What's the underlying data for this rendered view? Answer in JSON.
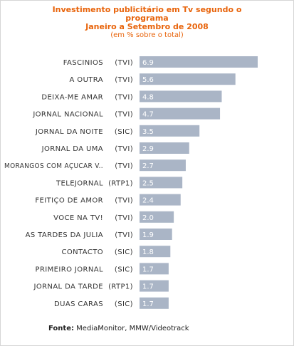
{
  "header": {
    "title_line1": "Investimento publicitário em Tv segundo o",
    "title_line2": "programa",
    "title_line3": "Janeiro a Setembro de 2008",
    "subtitle": "(em % sobre o total)"
  },
  "colors": {
    "title": "#e8630a",
    "bar": "#aab5c6",
    "bar_text": "#ffffff",
    "label_text": "#333333"
  },
  "chart_data": {
    "type": "bar",
    "orientation": "horizontal",
    "title": "Investimento publicitário em Tv segundo o programa Janeiro a Setembro de 2008",
    "subtitle": "(em % sobre o total)",
    "unit": "%",
    "categories": [
      {
        "name": "FASCINIOS",
        "channel": "(TVI)"
      },
      {
        "name": "A OUTRA",
        "channel": "(TVI)"
      },
      {
        "name": "DEIXA-ME AMAR",
        "channel": "(TVI)"
      },
      {
        "name": "JORNAL NACIONAL",
        "channel": "(TVI)"
      },
      {
        "name": "JORNAL DA NOITE",
        "channel": "(SIC)"
      },
      {
        "name": "JORNAL DA UMA",
        "channel": "(TVI)"
      },
      {
        "name": "MORANGOS COM AÇUCAR V..",
        "channel": "(TVI)"
      },
      {
        "name": "TELEJORNAL",
        "channel": "(RTP1)"
      },
      {
        "name": "FEITIÇO DE AMOR",
        "channel": "(TVI)"
      },
      {
        "name": "VOCE NA TV!",
        "channel": "(TVI)"
      },
      {
        "name": "AS TARDES DA JULIA",
        "channel": "(TVI)"
      },
      {
        "name": "CONTACTO",
        "channel": "(SIC)"
      },
      {
        "name": "PRIMEIRO JORNAL",
        "channel": "(SIC)"
      },
      {
        "name": "JORNAL DA TARDE",
        "channel": "(RTP1)"
      },
      {
        "name": "DUAS CARAS",
        "channel": "(SIC)"
      }
    ],
    "values": [
      6.9,
      5.6,
      4.8,
      4.7,
      3.5,
      2.9,
      2.7,
      2.5,
      2.4,
      2.0,
      1.9,
      1.8,
      1.7,
      1.7,
      1.7
    ],
    "value_labels": [
      "6.9",
      "5.6",
      "4.8",
      "4.7",
      "3.5",
      "2.9",
      "2.7",
      "2.5",
      "2.4",
      "2.0",
      "1.9",
      "1.8",
      "1.7",
      "1.7",
      "1.7"
    ],
    "xlim": [
      0,
      6.9
    ],
    "grid": false,
    "legend": "none"
  },
  "source": {
    "label": "Fonte",
    "separator": ":",
    "text": " MediaMonitor, MMW/Videotrack"
  }
}
